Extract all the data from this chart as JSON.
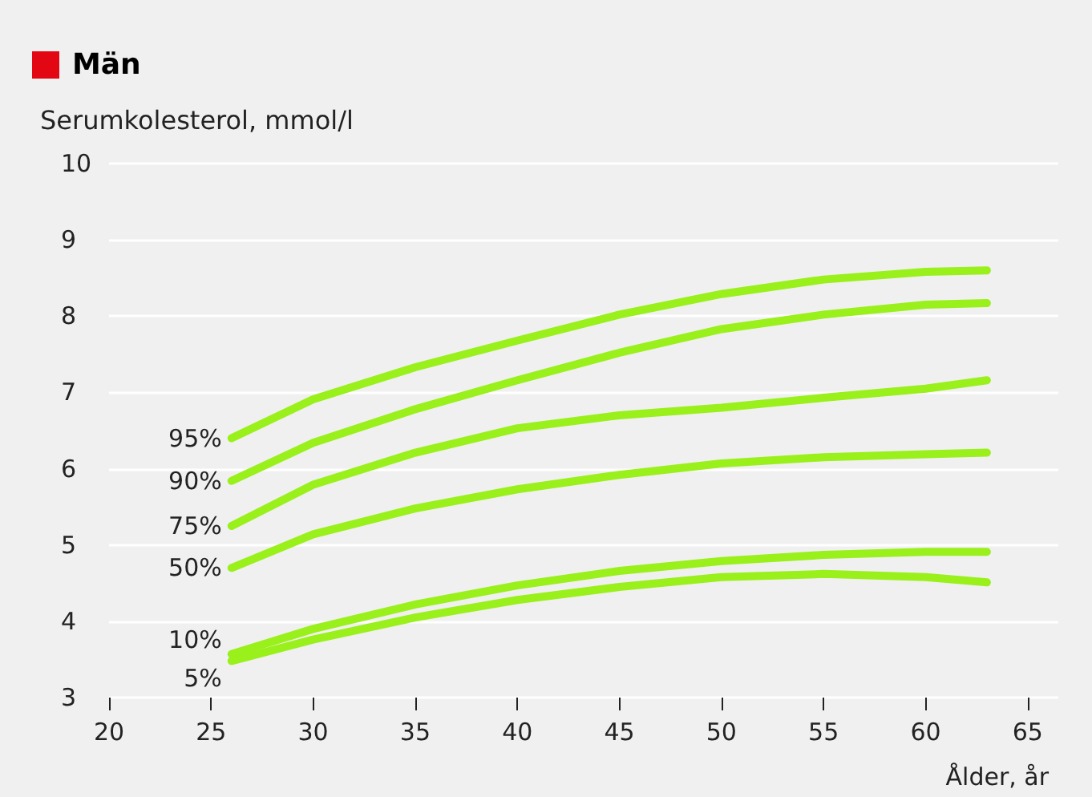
{
  "chart_data": {
    "type": "line",
    "title": "Män",
    "ylabel": "Serumkolesterol, mmol/l",
    "xlabel": "Ålder, år",
    "x": [
      26,
      30,
      35,
      40,
      45,
      50,
      55,
      60,
      63
    ],
    "series": [
      {
        "name": "95%",
        "color": "#99f01a",
        "values": [
          6.4,
          6.91,
          7.33,
          7.68,
          8.02,
          8.29,
          8.48,
          8.58,
          8.6
        ]
      },
      {
        "name": "90%",
        "color": "#99f01a",
        "values": [
          5.84,
          6.34,
          6.78,
          7.16,
          7.52,
          7.83,
          8.02,
          8.15,
          8.17
        ]
      },
      {
        "name": "75%",
        "color": "#99f01a",
        "values": [
          5.25,
          5.79,
          6.21,
          6.53,
          6.7,
          6.8,
          6.93,
          7.05,
          7.16
        ]
      },
      {
        "name": "50%",
        "color": "#99f01a",
        "values": [
          4.7,
          5.14,
          5.48,
          5.73,
          5.92,
          6.07,
          6.15,
          6.19,
          6.21
        ]
      },
      {
        "name": "10%",
        "color": "#99f01a",
        "values": [
          3.57,
          3.9,
          4.22,
          4.47,
          4.66,
          4.79,
          4.87,
          4.91,
          4.91
        ]
      },
      {
        "name": "5%",
        "color": "#99f01a",
        "values": [
          3.48,
          3.76,
          4.05,
          4.28,
          4.45,
          4.58,
          4.62,
          4.58,
          4.51
        ]
      }
    ],
    "xlim": [
      20,
      66.5
    ],
    "xticks": [
      20,
      25,
      30,
      35,
      40,
      45,
      50,
      55,
      60,
      65
    ],
    "ylim": [
      3,
      10
    ],
    "yticks": [
      3,
      4,
      5,
      6,
      7,
      8,
      9,
      10
    ],
    "grid": "y",
    "legend": false,
    "marker": "none",
    "line_style": "solid"
  }
}
